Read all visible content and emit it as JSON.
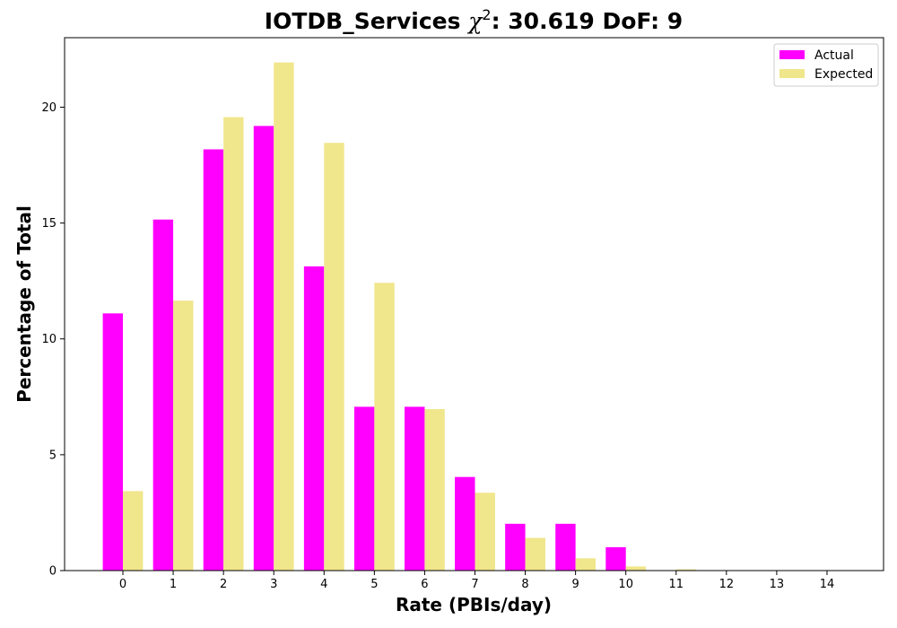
{
  "chart_data": {
    "type": "bar",
    "title": {
      "main": "IOTDB_Services ",
      "chi_symbol": "χ",
      "superscript": "2",
      "rest": ": 30.619 DoF: 9"
    },
    "xlabel": "Rate (PBIs/day)",
    "ylabel": "Percentage of Total",
    "categories": [
      "0",
      "1",
      "2",
      "3",
      "4",
      "5",
      "6",
      "7",
      "8",
      "9",
      "10",
      "11",
      "12",
      "13",
      "14"
    ],
    "series": [
      {
        "name": "Actual",
        "color": "#ff00ff",
        "values": [
          11.1,
          15.15,
          18.18,
          19.19,
          13.13,
          7.07,
          7.07,
          4.04,
          2.02,
          2.02,
          1.01,
          0,
          0,
          0,
          0
        ]
      },
      {
        "name": "Expected",
        "color": "#f0e68c",
        "values": [
          3.43,
          11.65,
          19.57,
          21.93,
          18.46,
          12.42,
          6.97,
          3.36,
          1.41,
          0.53,
          0.18,
          0.055,
          0.015,
          0.004,
          0.001
        ]
      }
    ],
    "ylim": [
      0,
      23
    ],
    "yticks": [
      0,
      5,
      10,
      15,
      20
    ],
    "grid": false,
    "legend_position": "top-right"
  }
}
